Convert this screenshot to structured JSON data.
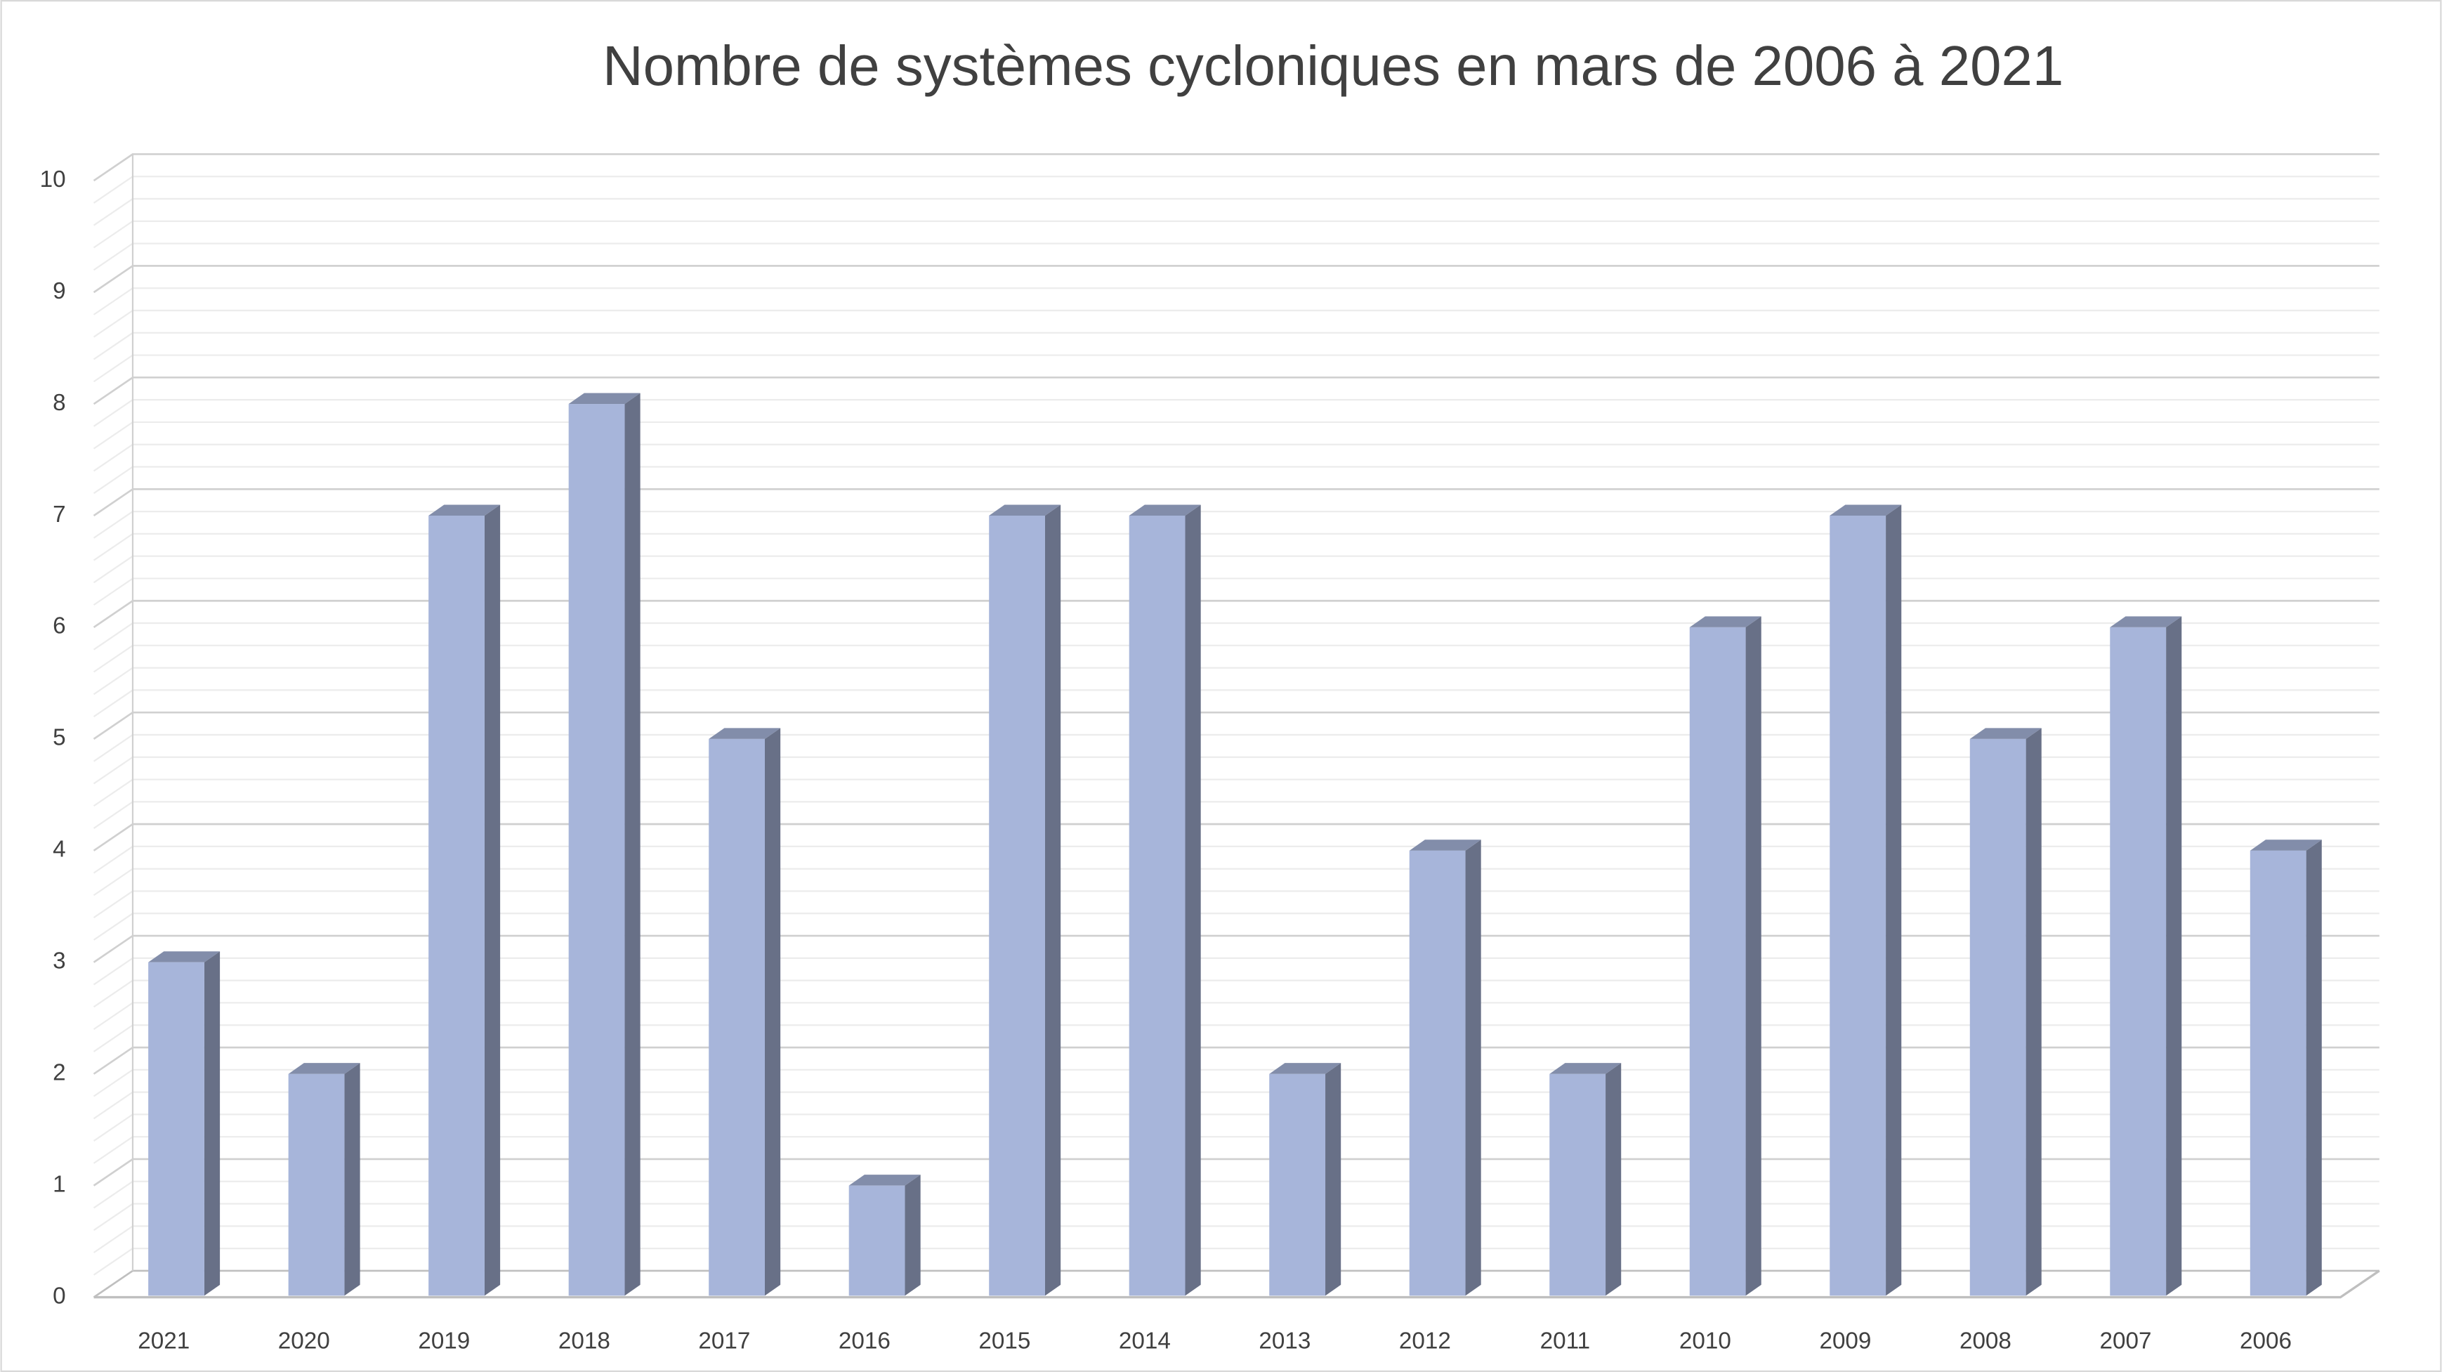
{
  "chart_data": {
    "type": "bar3d",
    "title": "Nombre de systèmes cycloniques en mars de 2006 à 2021",
    "categories": [
      "2021",
      "2020",
      "2019",
      "2018",
      "2017",
      "2016",
      "2015",
      "2014",
      "2013",
      "2012",
      "2011",
      "2010",
      "2009",
      "2008",
      "2007",
      "2006"
    ],
    "values": [
      3,
      2,
      7,
      8,
      5,
      1,
      7,
      7,
      2,
      4,
      2,
      6,
      7,
      5,
      6,
      4
    ],
    "color": "#a7b5da",
    "ylim": [
      0,
      10
    ],
    "yticks": [
      0,
      1,
      2,
      3,
      4,
      5,
      6,
      7,
      8,
      9,
      10
    ],
    "grid": true
  }
}
